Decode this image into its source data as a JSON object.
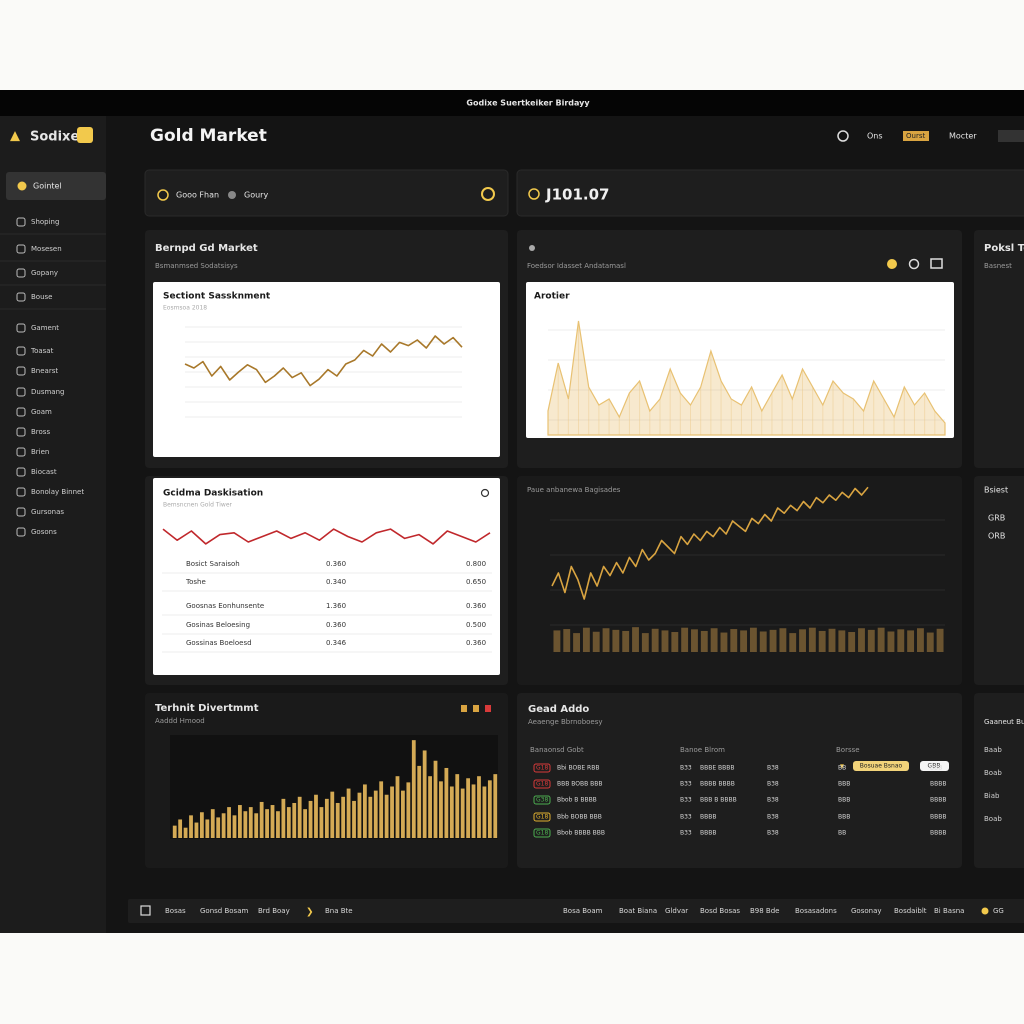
{
  "window_title": "Godixe Suertkeiker Birdayy",
  "sidebar": {
    "brand": "Sodixe",
    "active": "Gointel",
    "items": [
      "Shoping",
      "Mosesen",
      "Gopany",
      "Bouse",
      "Gament",
      "Toasat",
      "Bnearst",
      "Dusmang",
      "Goam",
      "Bross",
      "Brien",
      "Biocast",
      "Bonolay Binnet",
      "Gursonas",
      "Gosons"
    ]
  },
  "header": {
    "title": "Gold Market",
    "nav": [
      "Ons",
      "Ourst",
      "Mocter"
    ]
  },
  "search": {
    "placeholder": "Gooo Fhan",
    "option": "Goury"
  },
  "price": "J101.07",
  "panels": {
    "market": {
      "title": "Bernpd Gd Market",
      "subtitle": "Bsmanmsed Sodatsisys",
      "card_title": "Sectiont Sassknment",
      "card_subtitle": "Eosmsoa 2018"
    },
    "area": {
      "subtitle": "Foedsor Idasset Andatamasl",
      "card_title": "Arotier"
    },
    "side_top": {
      "title": "Poksl Tc",
      "subtitle": "Basnest"
    },
    "analysis": {
      "card_title": "Gcidma Daskisation",
      "card_subtitle": "Bemsncnen Gold Tiwer",
      "rows": [
        [
          "Bosict Saraisoh",
          "0.360",
          "0.800"
        ],
        [
          "Toshe",
          "0.340",
          "0.650"
        ],
        [
          "Goosnas Eonhunsente",
          "1.360",
          "0.360"
        ],
        [
          "Gosinas Beloesing",
          "0.360",
          "0.500"
        ],
        [
          "Gossinas Boeloesd",
          "0.346",
          "0.360"
        ]
      ]
    },
    "trend": {
      "subtitle": "Paue anbanewa Bagisades"
    },
    "side_mid": {
      "title": "Bsiest",
      "items": [
        "GRB",
        "ORB"
      ]
    },
    "technical": {
      "title": "Terhnit Divertmmt",
      "subtitle": "Aaddd Hmood"
    },
    "trades": {
      "title": "Gead Addo",
      "subtitle": "Aeaenge Bbrnoboesy",
      "headers": [
        "Banaonsd Gobt",
        "Banoe Blrom",
        "Borsse"
      ],
      "button": "Bosuae Bsnao",
      "button2": "GBB",
      "badge_colors": [
        "#d83a3a",
        "#d83a3a",
        "#4caf50",
        "#e0b030",
        "#4caf50"
      ],
      "rows": [
        [
          "G18",
          "Bbi BOBE RBB",
          "B33",
          "BBBE BBBB",
          "B38",
          "BB",
          "BBB"
        ],
        [
          "G18",
          "BBB BOBB BBB",
          "B33",
          "BBBB BBBB",
          "B38",
          "BBB",
          "BBBB"
        ],
        [
          "G38",
          "Bbob B BBBB",
          "B33",
          "BBB B BBBB",
          "B38",
          "BBB",
          "BBBB"
        ],
        [
          "G18",
          "Bbb BOBB BBB",
          "B33",
          "BBBB",
          "B38",
          "BBB",
          "BBBB"
        ],
        [
          "G18",
          "Bbob BBBB BBB",
          "B33",
          "BBBB",
          "B38",
          "BB",
          "BBBB"
        ]
      ]
    },
    "side_bottom": {
      "title": "Gaaneut Buew",
      "items": [
        "Baab",
        "Boab",
        "Biab",
        "Boab"
      ]
    }
  },
  "footer": {
    "left": [
      "Bosas",
      "Gonsd Bosam",
      "Brd Boay",
      "Bna Bte"
    ],
    "right": [
      "Bosa Boam",
      "Boat Biana",
      "Gldvar",
      "Bosd Bosas",
      "B98 Bde",
      "Bosasadons",
      "Gosonay",
      "Bosdaiblt",
      "Bi Basna",
      "GG"
    ]
  },
  "charts": [
    {
      "type": "line",
      "color": "#a8782a",
      "ylim": [
        0,
        100
      ],
      "values": [
        45,
        40,
        48,
        30,
        42,
        25,
        35,
        44,
        38,
        22,
        30,
        40,
        28,
        34,
        18,
        26,
        38,
        30,
        45,
        50,
        62,
        55,
        70,
        60,
        72,
        68,
        75,
        65,
        80,
        70,
        78,
        66
      ]
    },
    {
      "type": "area",
      "color": "#e8c172",
      "ylim": [
        0,
        100
      ],
      "values": [
        20,
        60,
        30,
        95,
        40,
        25,
        30,
        15,
        35,
        45,
        20,
        30,
        55,
        35,
        25,
        40,
        70,
        45,
        30,
        25,
        40,
        20,
        35,
        50,
        30,
        55,
        40,
        25,
        45,
        35,
        30,
        20,
        45,
        30,
        15,
        40,
        25,
        35,
        20,
        10
      ]
    },
    {
      "type": "line",
      "color": "#c0282c",
      "ylim": [
        0,
        100
      ],
      "values": [
        70,
        40,
        65,
        30,
        55,
        60,
        35,
        50,
        65,
        45,
        60,
        40,
        70,
        50,
        35,
        60,
        70,
        45,
        55,
        30,
        65,
        50,
        35,
        60
      ]
    },
    {
      "type": "line",
      "color": "#d9a441",
      "ylim": [
        0,
        100
      ],
      "values": [
        20,
        30,
        15,
        35,
        25,
        10,
        30,
        20,
        35,
        28,
        38,
        30,
        42,
        35,
        48,
        40,
        45,
        55,
        50,
        45,
        58,
        52,
        60,
        55,
        62,
        58,
        65,
        60,
        70,
        66,
        62,
        72,
        68,
        75,
        70,
        80,
        76,
        82,
        78,
        85,
        80,
        88,
        84,
        90,
        86,
        92,
        88,
        95,
        90,
        96
      ]
    },
    {
      "type": "bar",
      "color": "#6b5430",
      "ylim": [
        0,
        100
      ],
      "values": [
        80,
        85,
        70,
        90,
        75,
        88,
        82,
        78,
        92,
        70,
        86,
        80,
        74,
        90,
        84,
        78,
        88,
        72,
        85,
        80,
        90,
        76,
        82,
        88,
        70,
        84,
        90,
        78,
        86,
        80,
        74,
        88,
        82,
        90,
        76,
        84,
        80,
        88,
        72,
        86
      ]
    },
    {
      "type": "bar",
      "color": "#d4aa55",
      "ylim": [
        0,
        100
      ],
      "values": [
        12,
        18,
        10,
        22,
        15,
        25,
        18,
        28,
        20,
        24,
        30,
        22,
        32,
        26,
        30,
        24,
        35,
        28,
        32,
        26,
        38,
        30,
        34,
        40,
        28,
        36,
        42,
        30,
        38,
        45,
        34,
        40,
        48,
        36,
        44,
        52,
        40,
        46,
        55,
        42,
        50,
        60,
        46,
        54,
        95,
        70,
        85,
        60,
        75,
        55,
        68,
        50,
        62,
        48,
        58,
        52,
        60,
        50,
        56,
        62
      ]
    }
  ]
}
